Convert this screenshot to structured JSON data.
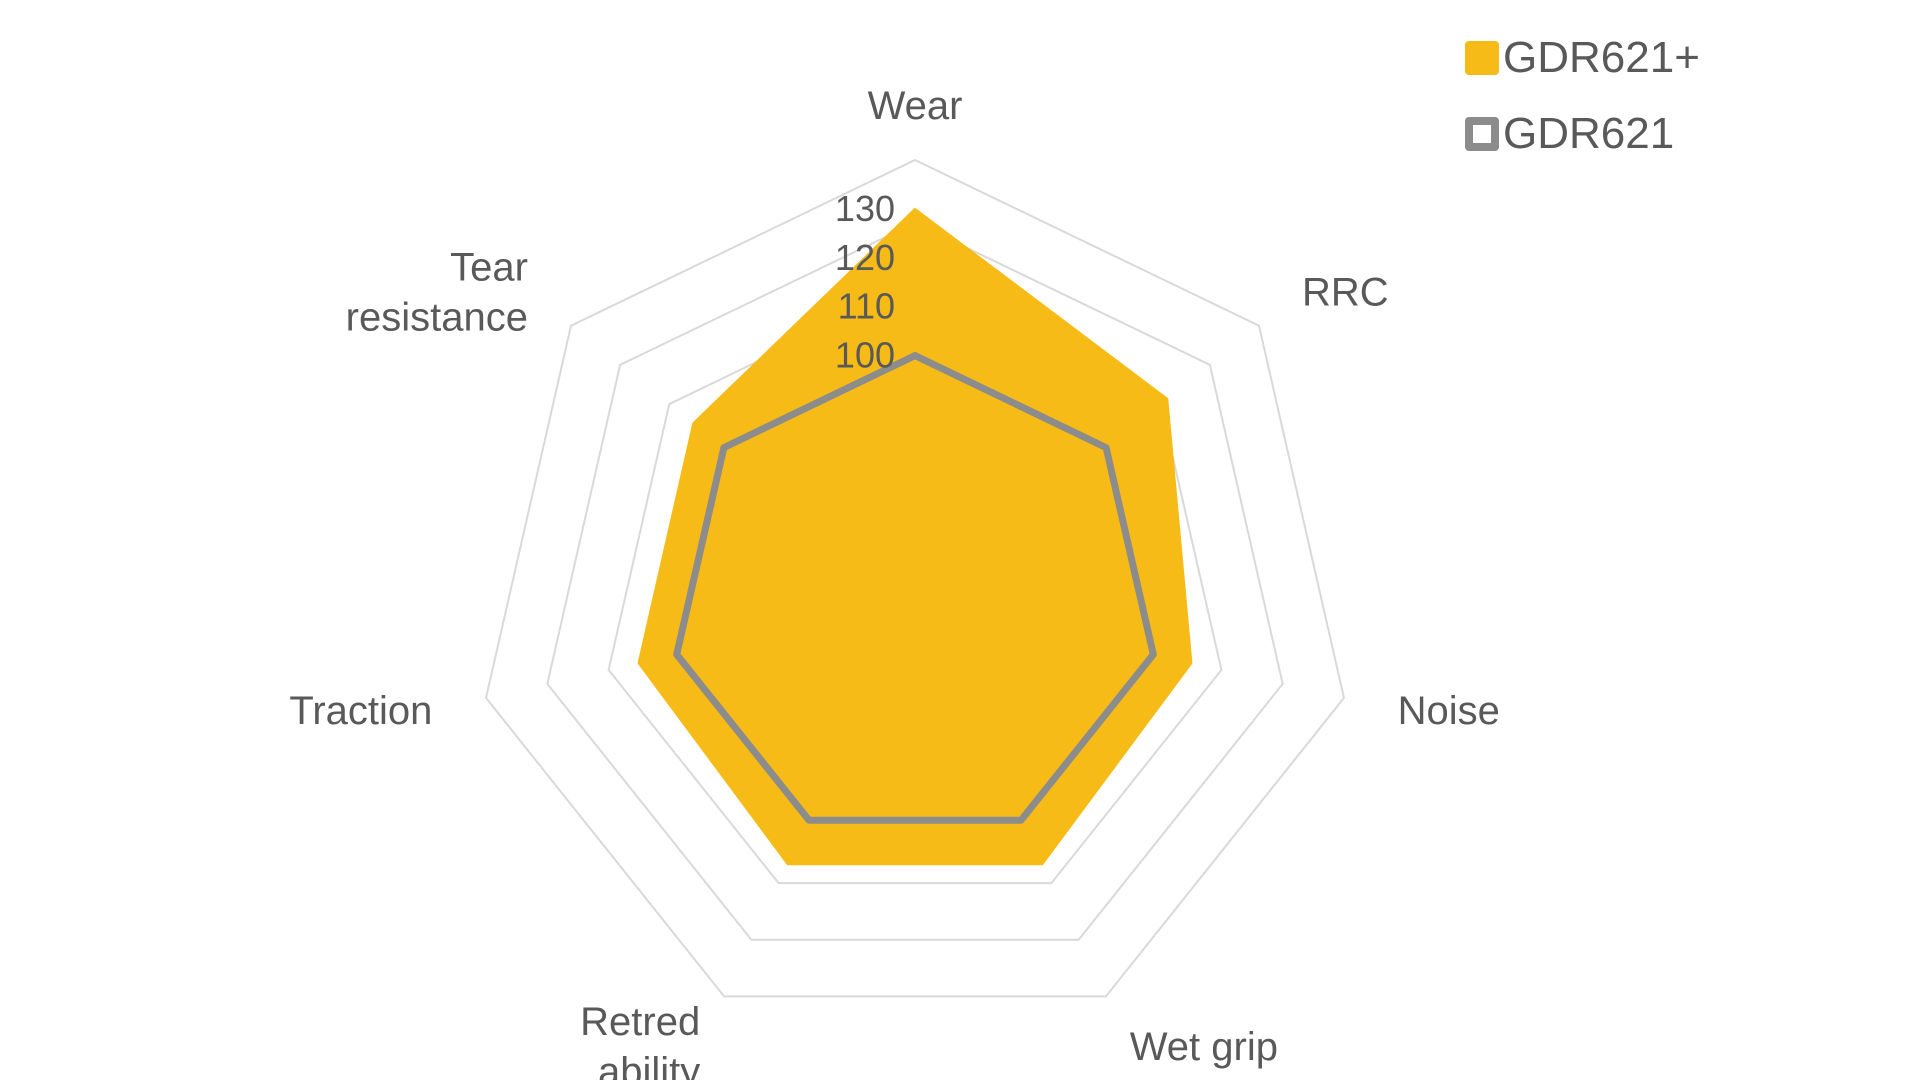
{
  "chart_data": {
    "type": "radar",
    "categories": [
      "Wear",
      "RRC",
      "Noise",
      "Wet grip",
      "Retred\nability",
      "Traction",
      "Tear\nresistance"
    ],
    "series": [
      {
        "name": "GDR621+",
        "values": [
          130,
          116,
          108,
          110,
          110,
          108,
          108
        ],
        "color": "#F7BB17",
        "style": "filled"
      },
      {
        "name": "GDR621",
        "values": [
          100,
          100,
          100,
          100,
          100,
          100,
          100
        ],
        "color": "#8C8C8C",
        "style": "line"
      }
    ],
    "ticks": [
      100,
      110,
      120,
      130
    ],
    "scale_min": 50,
    "scale_max": 140,
    "grid_rings": 7,
    "grid": true,
    "legend_position": "top-right"
  },
  "legend": [
    {
      "label": "GDR621+",
      "color": "#F7BB17",
      "style": "filled"
    },
    {
      "label": "GDR621",
      "color": "#8C8C8C",
      "style": "outline"
    }
  ]
}
